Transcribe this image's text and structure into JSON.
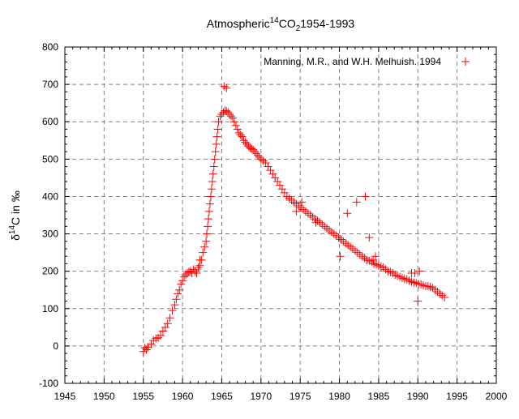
{
  "chart_data": {
    "type": "scatter",
    "title_parts": {
      "prefix": "Atmospheric",
      "sup": "14",
      "middle": "CO",
      "sub": "2",
      "suffix": "1954-1993"
    },
    "xlabel": "",
    "ylabel_parts": {
      "prefix": "δ",
      "sup": "14",
      "suffix": "C in ‰"
    },
    "xlim": [
      1945,
      2000
    ],
    "ylim": [
      -100,
      800
    ],
    "xticks": [
      1945,
      1950,
      1955,
      1960,
      1965,
      1970,
      1975,
      1980,
      1985,
      1990,
      1995,
      2000
    ],
    "yticks": [
      -100,
      0,
      100,
      200,
      300,
      400,
      500,
      600,
      700,
      800
    ],
    "grid": true,
    "legend": {
      "position": "top-right",
      "entries": [
        "Manning, M.R., and W.H. Melhuish. 1994"
      ]
    },
    "marker": "+",
    "color": "#ff0000",
    "series": [
      {
        "name": "Manning, M.R., and W.H. Melhuish. 1994",
        "x": [
          1955.0,
          1955.2,
          1955.4,
          1955.6,
          1956.0,
          1956.3,
          1956.6,
          1956.9,
          1957.2,
          1957.5,
          1957.8,
          1958.1,
          1958.4,
          1958.7,
          1959.0,
          1959.2,
          1959.4,
          1959.6,
          1959.8,
          1960.0,
          1960.2,
          1960.4,
          1960.6,
          1960.8,
          1961.0,
          1961.2,
          1961.4,
          1961.6,
          1961.8,
          1962.0,
          1962.2,
          1962.4,
          1962.6,
          1962.8,
          1963.0,
          1963.1,
          1963.2,
          1963.3,
          1963.4,
          1963.5,
          1963.6,
          1963.7,
          1963.8,
          1963.9,
          1964.0,
          1964.1,
          1964.2,
          1964.3,
          1964.4,
          1964.5,
          1964.6,
          1964.8,
          1965.0,
          1965.2,
          1965.4,
          1965.6,
          1965.8,
          1966.0,
          1966.2,
          1966.4,
          1966.6,
          1966.8,
          1967.0,
          1967.2,
          1967.4,
          1967.6,
          1967.8,
          1968.0,
          1968.2,
          1968.4,
          1968.6,
          1968.8,
          1969.0,
          1969.2,
          1969.4,
          1969.6,
          1969.8,
          1970.0,
          1970.3,
          1970.6,
          1970.9,
          1971.2,
          1971.5,
          1971.8,
          1972.1,
          1972.4,
          1972.7,
          1973.0,
          1973.3,
          1973.6,
          1973.9,
          1974.2,
          1974.5,
          1974.8,
          1975.1,
          1975.4,
          1975.7,
          1976.0,
          1976.3,
          1976.6,
          1976.9,
          1977.2,
          1977.5,
          1977.8,
          1978.1,
          1978.4,
          1978.7,
          1979.0,
          1979.3,
          1979.6,
          1979.9,
          1980.2,
          1980.5,
          1980.8,
          1981.1,
          1981.4,
          1981.7,
          1982.0,
          1982.3,
          1982.6,
          1982.9,
          1983.2,
          1983.5,
          1983.8,
          1984.1,
          1984.4,
          1984.7,
          1985.0,
          1985.3,
          1985.6,
          1985.9,
          1986.2,
          1986.5,
          1986.8,
          1987.1,
          1987.4,
          1987.7,
          1988.0,
          1988.3,
          1988.6,
          1988.9,
          1989.2,
          1989.5,
          1989.8,
          1990.1,
          1990.4,
          1990.7,
          1991.0,
          1991.3,
          1991.6,
          1991.9,
          1992.2,
          1992.5,
          1992.8,
          1993.1,
          1993.4,
          1965.3,
          1965.6,
          1974.5,
          1980.1,
          1981.0,
          1982.2,
          1983.3,
          1983.8,
          1984.3,
          1989.2,
          1990.0,
          1990.2,
          1975.2,
          1977.0,
          1984.6,
          1961.8,
          1962.2,
          1989.6
        ],
        "y": [
          -15,
          -5,
          -10,
          -3,
          5,
          15,
          20,
          22,
          28,
          40,
          50,
          60,
          75,
          95,
          110,
          125,
          140,
          150,
          165,
          175,
          185,
          190,
          195,
          198,
          200,
          195,
          205,
          200,
          195,
          210,
          215,
          230,
          250,
          265,
          280,
          300,
          320,
          340,
          360,
          380,
          400,
          420,
          440,
          460,
          480,
          500,
          520,
          540,
          560,
          580,
          600,
          615,
          620,
          625,
          630,
          628,
          625,
          620,
          615,
          610,
          600,
          590,
          580,
          570,
          565,
          560,
          550,
          545,
          540,
          535,
          530,
          528,
          525,
          520,
          515,
          510,
          505,
          500,
          495,
          490,
          480,
          470,
          460,
          450,
          440,
          430,
          420,
          410,
          400,
          395,
          390,
          385,
          380,
          375,
          370,
          365,
          360,
          355,
          350,
          345,
          340,
          335,
          330,
          325,
          320,
          315,
          310,
          305,
          300,
          295,
          290,
          285,
          280,
          275,
          270,
          265,
          260,
          255,
          250,
          245,
          240,
          235,
          230,
          228,
          225,
          220,
          218,
          215,
          212,
          210,
          205,
          200,
          198,
          195,
          190,
          188,
          185,
          182,
          180,
          178,
          175,
          172,
          170,
          168,
          165,
          165,
          162,
          160,
          160,
          158,
          155,
          150,
          145,
          140,
          135,
          130,
          695,
          690,
          360,
          240,
          355,
          385,
          400,
          290,
          230,
          195,
          120,
          200,
          385,
          330,
          240,
          195,
          230,
          195
        ]
      }
    ]
  }
}
